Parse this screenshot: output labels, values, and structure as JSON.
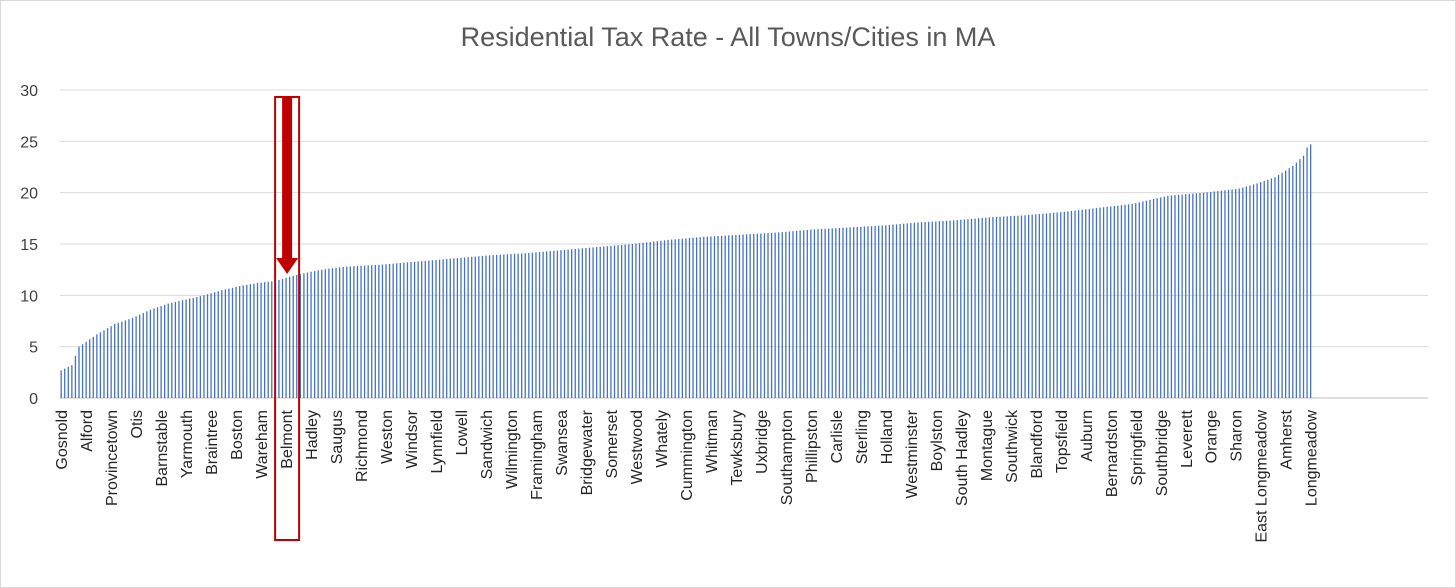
{
  "chart_data": {
    "type": "bar",
    "title": "Residential Tax Rate - All Towns/Cities in MA",
    "xlabel": "",
    "ylabel": "",
    "ylim": [
      0,
      30
    ],
    "yticks": [
      0,
      5,
      10,
      15,
      20,
      25,
      30
    ],
    "grid": true,
    "legend": "none",
    "bar_color": "#4472c4",
    "highlight_color": "#c00000",
    "highlighted_category": "Belmont",
    "num_bars": 351,
    "labeled_categories": [
      "Gosnold",
      "Alford",
      "Provincetown",
      "Otis",
      "Barnstable",
      "Yarmouth",
      "Braintree",
      "Boston",
      "Wareham",
      "Belmont",
      "Hadley",
      "Saugus",
      "Richmond",
      "Weston",
      "Windsor",
      "Lynnfield",
      "Lowell",
      "Sandwich",
      "Wilmington",
      "Framingham",
      "Swansea",
      "Bridgewater",
      "Somerset",
      "Westwood",
      "Whately",
      "Cummington",
      "Whitman",
      "Tewksbury",
      "Uxbridge",
      "Southampton",
      "Phillipston",
      "Carlisle",
      "Sterling",
      "Holland",
      "Westminster",
      "Boylston",
      "South Hadley",
      "Montague",
      "Southwick",
      "Blandford",
      "Topsfield",
      "Auburn",
      "Bernardston",
      "Springfield",
      "Southbridge",
      "Leverett",
      "Orange",
      "Sharon",
      "East Longmeadow",
      "Amherst",
      "Longmeadow"
    ],
    "value_curve_rank_to_value": [
      [
        0,
        2.7
      ],
      [
        3,
        3.2
      ],
      [
        5,
        5.0
      ],
      [
        10,
        6.2
      ],
      [
        15,
        7.2
      ],
      [
        20,
        7.8
      ],
      [
        25,
        8.6
      ],
      [
        30,
        9.2
      ],
      [
        35,
        9.6
      ],
      [
        40,
        10.0
      ],
      [
        45,
        10.5
      ],
      [
        50,
        10.9
      ],
      [
        55,
        11.2
      ],
      [
        60,
        11.4
      ],
      [
        65,
        11.9
      ],
      [
        70,
        12.3
      ],
      [
        75,
        12.6
      ],
      [
        80,
        12.8
      ],
      [
        90,
        13.0
      ],
      [
        100,
        13.3
      ],
      [
        110,
        13.6
      ],
      [
        120,
        13.9
      ],
      [
        130,
        14.1
      ],
      [
        140,
        14.4
      ],
      [
        150,
        14.7
      ],
      [
        160,
        15.0
      ],
      [
        170,
        15.4
      ],
      [
        180,
        15.7
      ],
      [
        190,
        15.9
      ],
      [
        200,
        16.1
      ],
      [
        210,
        16.4
      ],
      [
        220,
        16.6
      ],
      [
        230,
        16.8
      ],
      [
        240,
        17.1
      ],
      [
        250,
        17.3
      ],
      [
        260,
        17.6
      ],
      [
        270,
        17.8
      ],
      [
        280,
        18.1
      ],
      [
        290,
        18.5
      ],
      [
        300,
        18.9
      ],
      [
        305,
        19.3
      ],
      [
        310,
        19.7
      ],
      [
        320,
        20.0
      ],
      [
        330,
        20.4
      ],
      [
        335,
        20.9
      ],
      [
        340,
        21.5
      ],
      [
        345,
        22.6
      ],
      [
        348,
        23.6
      ],
      [
        349,
        24.4
      ],
      [
        350,
        24.7
      ]
    ]
  }
}
